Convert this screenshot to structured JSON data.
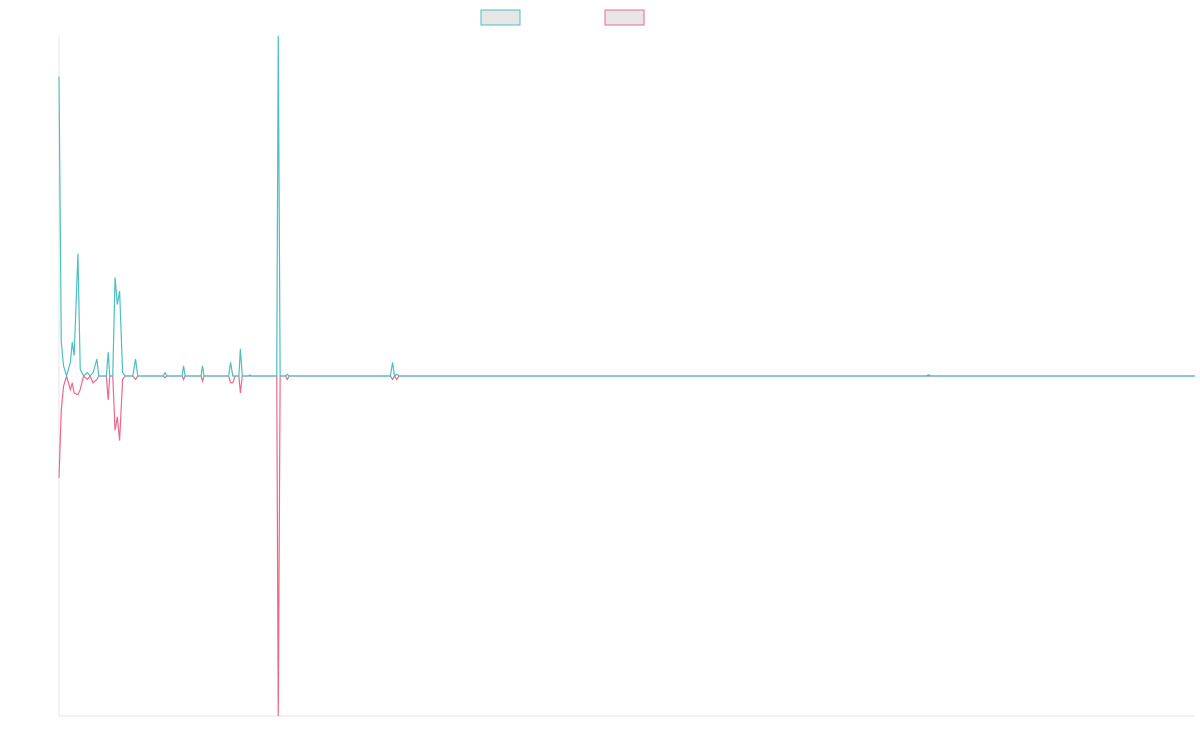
{
  "chart_data": {
    "type": "line",
    "xlim": [
      0,
      300
    ],
    "ylim": [
      -100,
      100
    ],
    "grid": false,
    "legend_position": "top-center",
    "baseline_color": "#4bc0c0",
    "series": [
      {
        "legend_swatch_color": "#4bc0c0",
        "color": "#4bc0c0",
        "points": [
          [
            0,
            88
          ],
          [
            0.6,
            10
          ],
          [
            1.2,
            3
          ],
          [
            2,
            0
          ],
          [
            3,
            4
          ],
          [
            3.5,
            10
          ],
          [
            4,
            6
          ],
          [
            5,
            36
          ],
          [
            5.6,
            2
          ],
          [
            6.5,
            0
          ],
          [
            7.5,
            1
          ],
          [
            8.2,
            0
          ],
          [
            9,
            1
          ],
          [
            10,
            5
          ],
          [
            10.5,
            0
          ],
          [
            12.5,
            0
          ],
          [
            13,
            7
          ],
          [
            13.4,
            0
          ],
          [
            14.2,
            0
          ],
          [
            14.8,
            29
          ],
          [
            15.4,
            21
          ],
          [
            16,
            25
          ],
          [
            16.8,
            1
          ],
          [
            17.5,
            0
          ],
          [
            19.5,
            0
          ],
          [
            20.2,
            5
          ],
          [
            20.8,
            0
          ],
          [
            27.5,
            0
          ],
          [
            28,
            1
          ],
          [
            28.5,
            0
          ],
          [
            32.5,
            0
          ],
          [
            32.9,
            3
          ],
          [
            33.3,
            0
          ],
          [
            37.5,
            0
          ],
          [
            37.9,
            3
          ],
          [
            38.3,
            0
          ],
          [
            44.8,
            0
          ],
          [
            45.3,
            4
          ],
          [
            45.9,
            0
          ],
          [
            46.5,
            0
          ],
          [
            47.5,
            0
          ],
          [
            47.9,
            8
          ],
          [
            48.4,
            0
          ],
          [
            50,
            0
          ],
          [
            50.4,
            0.3
          ],
          [
            50.8,
            0
          ],
          [
            57.5,
            0
          ],
          [
            57.9,
            100
          ],
          [
            58.4,
            0
          ],
          [
            59.8,
            0
          ],
          [
            60.3,
            0.5
          ],
          [
            60.8,
            0
          ],
          [
            87.5,
            0
          ],
          [
            88.1,
            4
          ],
          [
            88.6,
            0
          ],
          [
            89.2,
            0.5
          ],
          [
            89.8,
            0
          ],
          [
            229,
            0
          ],
          [
            229.6,
            0.4
          ],
          [
            230.2,
            0
          ],
          [
            300,
            0
          ]
        ]
      },
      {
        "legend_swatch_color": "#f0668a",
        "color": "#f0668a",
        "points": [
          [
            0,
            -30
          ],
          [
            0.6,
            -10
          ],
          [
            1.2,
            -3
          ],
          [
            2,
            0
          ],
          [
            3,
            -4
          ],
          [
            3.5,
            -2
          ],
          [
            4,
            -5
          ],
          [
            5,
            -5.5
          ],
          [
            5.6,
            -4
          ],
          [
            6.5,
            0
          ],
          [
            7.5,
            -1
          ],
          [
            8.2,
            0
          ],
          [
            9,
            -2
          ],
          [
            10,
            -1
          ],
          [
            10.5,
            0
          ],
          [
            12.5,
            0
          ],
          [
            13,
            -7
          ],
          [
            13.4,
            0
          ],
          [
            14.2,
            0
          ],
          [
            14.8,
            -16
          ],
          [
            15.4,
            -12
          ],
          [
            16,
            -19
          ],
          [
            16.8,
            -1
          ],
          [
            17.5,
            0
          ],
          [
            19.5,
            0
          ],
          [
            20.2,
            -1
          ],
          [
            20.8,
            0
          ],
          [
            27.5,
            0
          ],
          [
            28,
            -0.5
          ],
          [
            28.5,
            0
          ],
          [
            32.5,
            0
          ],
          [
            32.9,
            -1
          ],
          [
            33.3,
            0
          ],
          [
            37.5,
            0
          ],
          [
            37.9,
            -1.5
          ],
          [
            38.3,
            0
          ],
          [
            44.8,
            0
          ],
          [
            45.3,
            -2
          ],
          [
            45.9,
            -2
          ],
          [
            46.5,
            0
          ],
          [
            47.5,
            0
          ],
          [
            47.9,
            -5
          ],
          [
            48.4,
            0
          ],
          [
            50,
            0
          ],
          [
            57.5,
            0
          ],
          [
            57.9,
            -100
          ],
          [
            58.4,
            0
          ],
          [
            59.8,
            0
          ],
          [
            60.3,
            -1
          ],
          [
            60.8,
            0
          ],
          [
            87.5,
            0
          ],
          [
            88.1,
            -1
          ],
          [
            88.6,
            0
          ],
          [
            89.2,
            -1
          ],
          [
            89.8,
            0
          ],
          [
            229,
            0
          ],
          [
            300,
            0
          ]
        ]
      }
    ]
  }
}
